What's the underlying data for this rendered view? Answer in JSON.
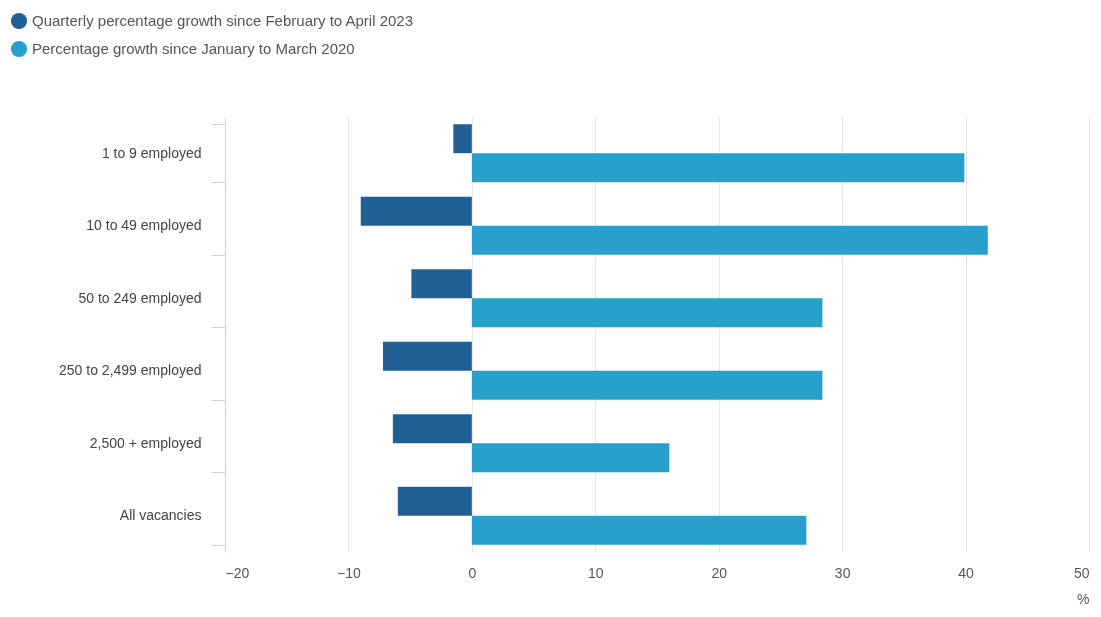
{
  "chart_data": {
    "type": "bar",
    "orientation": "horizontal",
    "categories": [
      "1 to 9 employed",
      "10 to 49 employed",
      "50 to 249 employed",
      "250 to 2,499 employed",
      "2,500 + employed",
      "All vacancies"
    ],
    "series": [
      {
        "name": "Quarterly percentage growth since February to April 2023",
        "color": "#206095",
        "values": [
          -1.5,
          -9.0,
          -4.9,
          -7.2,
          -6.4,
          -6.0
        ]
      },
      {
        "name": "Percentage growth since January to March 2020",
        "color": "#27a0cc",
        "values": [
          39.9,
          41.8,
          28.4,
          28.4,
          16.0,
          27.1
        ]
      }
    ],
    "xlabel": "%",
    "xlim": [
      -20,
      50
    ],
    "xticks": [
      -20,
      -10,
      0,
      10,
      20,
      30,
      40,
      50
    ],
    "grid": "x",
    "legend": "top left"
  }
}
